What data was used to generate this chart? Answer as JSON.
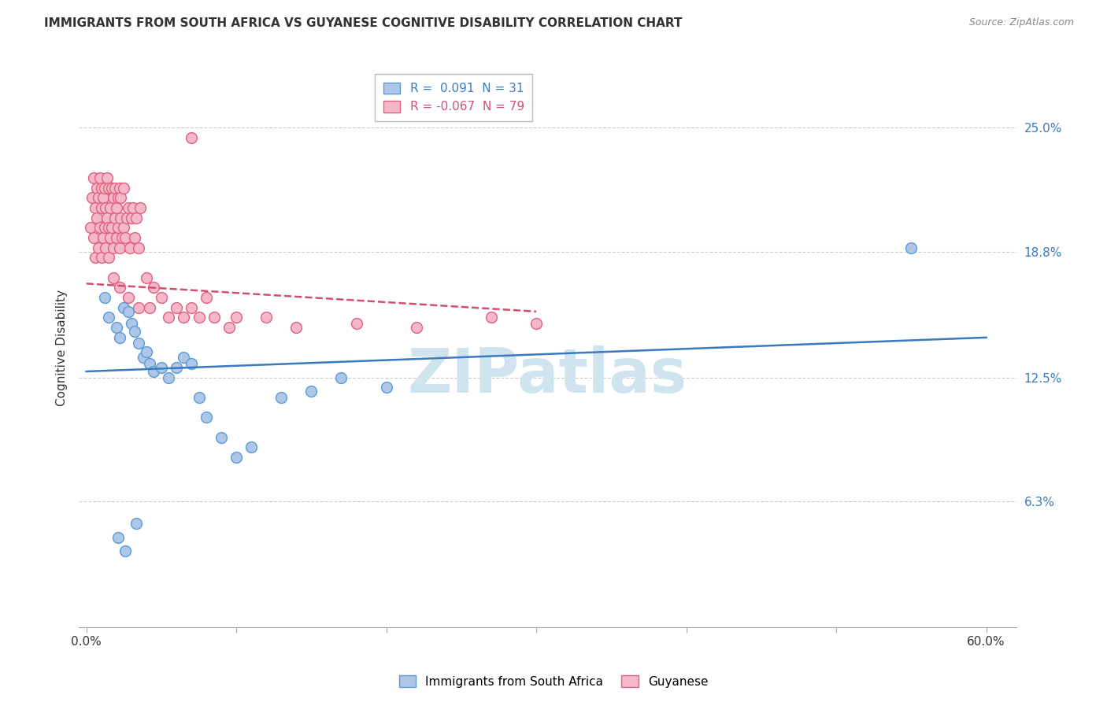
{
  "title": "IMMIGRANTS FROM SOUTH AFRICA VS GUYANESE COGNITIVE DISABILITY CORRELATION CHART",
  "source": "Source: ZipAtlas.com",
  "ylabel": "Cognitive Disability",
  "ytick_labels": [
    "6.3%",
    "12.5%",
    "18.8%",
    "25.0%"
  ],
  "ytick_values": [
    6.3,
    12.5,
    18.8,
    25.0
  ],
  "xlim": [
    0.0,
    60.0
  ],
  "ylim": [
    0.0,
    27.0
  ],
  "legend_r1": "R =  0.091",
  "legend_n1": "N = 31",
  "legend_r2": "R = -0.067",
  "legend_n2": "N = 79",
  "series1_label": "Immigrants from South Africa",
  "series2_label": "Guyanese",
  "series1_color": "#aec6e8",
  "series2_color": "#f4b8c8",
  "series1_edge_color": "#5b9bd5",
  "series2_edge_color": "#e06080",
  "series1_line_color": "#3a7abf",
  "series2_line_color": "#d05070",
  "watermark": "ZIPatlas",
  "watermark_color": "#d0e4f0",
  "sa_x": [
    1.2,
    1.5,
    2.0,
    2.2,
    2.5,
    2.8,
    3.0,
    3.2,
    3.5,
    3.8,
    4.0,
    4.2,
    4.5,
    5.0,
    5.5,
    6.0,
    6.5,
    7.0,
    7.5,
    8.0,
    9.0,
    10.0,
    11.0,
    13.0,
    15.0,
    17.0,
    20.0,
    55.0,
    2.1,
    2.6,
    3.3
  ],
  "sa_y": [
    16.5,
    15.5,
    15.0,
    14.5,
    16.0,
    15.8,
    15.2,
    14.8,
    14.2,
    13.5,
    13.8,
    13.2,
    12.8,
    13.0,
    12.5,
    13.0,
    13.5,
    13.2,
    11.5,
    10.5,
    9.5,
    8.5,
    9.0,
    11.5,
    11.8,
    12.5,
    12.0,
    19.0,
    4.5,
    3.8,
    5.2
  ],
  "gy_x": [
    0.3,
    0.4,
    0.5,
    0.5,
    0.6,
    0.6,
    0.7,
    0.7,
    0.8,
    0.8,
    0.9,
    0.9,
    1.0,
    1.0,
    1.0,
    1.1,
    1.1,
    1.2,
    1.2,
    1.3,
    1.3,
    1.4,
    1.4,
    1.5,
    1.5,
    1.5,
    1.6,
    1.6,
    1.7,
    1.7,
    1.8,
    1.8,
    1.9,
    1.9,
    2.0,
    2.0,
    2.1,
    2.1,
    2.2,
    2.2,
    2.3,
    2.3,
    2.4,
    2.5,
    2.5,
    2.6,
    2.7,
    2.8,
    2.9,
    3.0,
    3.1,
    3.2,
    3.3,
    3.5,
    3.6,
    4.0,
    4.5,
    5.0,
    6.0,
    7.0,
    7.5,
    8.5,
    9.5,
    1.8,
    2.2,
    2.8,
    3.5,
    4.2,
    5.5,
    6.5,
    7.0,
    8.0,
    10.0,
    12.0,
    14.0,
    18.0,
    22.0,
    27.0,
    30.0
  ],
  "gy_y": [
    20.0,
    21.5,
    19.5,
    22.5,
    18.5,
    21.0,
    20.5,
    22.0,
    19.0,
    21.5,
    20.0,
    22.5,
    18.5,
    21.0,
    22.0,
    19.5,
    21.5,
    20.0,
    22.0,
    19.0,
    21.0,
    20.5,
    22.5,
    18.5,
    20.0,
    22.0,
    19.5,
    21.0,
    20.0,
    22.0,
    19.0,
    21.5,
    20.5,
    22.0,
    19.5,
    21.0,
    20.0,
    21.5,
    19.0,
    22.0,
    20.5,
    21.5,
    19.5,
    20.0,
    22.0,
    19.5,
    20.5,
    21.0,
    19.0,
    20.5,
    21.0,
    19.5,
    20.5,
    19.0,
    21.0,
    17.5,
    17.0,
    16.5,
    16.0,
    16.0,
    15.5,
    15.5,
    15.0,
    17.5,
    17.0,
    16.5,
    16.0,
    16.0,
    15.5,
    15.5,
    24.5,
    16.5,
    15.5,
    15.5,
    15.0,
    15.2,
    15.0,
    15.5,
    15.2
  ]
}
